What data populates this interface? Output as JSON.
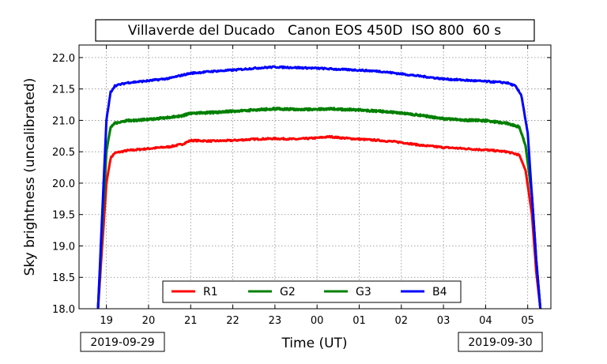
{
  "chart_data": {
    "type": "line",
    "title": "Villaverde del Ducado   Canon EOS 450D  ISO 800  60 s",
    "xlabel": "Time (UT)",
    "ylabel": "Sky brightness (uncalibrated)",
    "xlim": [
      18.35,
      29.55
    ],
    "ylim": [
      18.0,
      22.2
    ],
    "yticks": [
      18.0,
      18.5,
      19.0,
      19.5,
      20.0,
      20.5,
      21.0,
      21.5,
      22.0
    ],
    "ytick_labels": [
      "18.0",
      "18.5",
      "19.0",
      "19.5",
      "20.0",
      "20.5",
      "21.0",
      "21.5",
      "22.0"
    ],
    "xticks": [
      19,
      20,
      21,
      22,
      23,
      24,
      25,
      26,
      27,
      28,
      29
    ],
    "xtick_labels": [
      "19",
      "20",
      "21",
      "22",
      "23",
      "00",
      "01",
      "02",
      "03",
      "04",
      "05"
    ],
    "grid": true,
    "legend_position": "lower-center",
    "date_labels": {
      "start": "2019-09-29",
      "end": "2019-09-30"
    },
    "colors": {
      "R1": "#ff0000",
      "G2": "#008000",
      "G3": "#008000",
      "B4": "#0000ff"
    },
    "series": [
      {
        "name": "R1",
        "color": "#ff0000",
        "x": [
          18.8,
          18.9,
          19.0,
          19.1,
          19.2,
          19.5,
          20.0,
          20.5,
          20.8,
          21.0,
          21.5,
          22.0,
          22.5,
          23.0,
          23.5,
          24.0,
          24.3,
          24.6,
          25.0,
          25.5,
          26.0,
          26.5,
          27.0,
          27.5,
          28.0,
          28.5,
          28.8,
          28.95,
          29.1,
          29.2,
          29.3
        ],
        "y": [
          18.0,
          19.0,
          20.0,
          20.4,
          20.48,
          20.52,
          20.55,
          20.58,
          20.62,
          20.68,
          20.67,
          20.68,
          20.7,
          20.71,
          20.7,
          20.72,
          20.74,
          20.72,
          20.7,
          20.68,
          20.65,
          20.6,
          20.57,
          20.55,
          20.53,
          20.5,
          20.45,
          20.2,
          19.5,
          18.6,
          18.0
        ]
      },
      {
        "name": "G2",
        "color": "#008000",
        "x": [
          18.8,
          18.9,
          19.0,
          19.1,
          19.2,
          19.5,
          20.0,
          20.5,
          20.8,
          21.0,
          21.5,
          22.0,
          22.5,
          23.0,
          23.5,
          24.0,
          24.3,
          24.6,
          25.0,
          25.5,
          26.0,
          26.5,
          27.0,
          27.5,
          28.0,
          28.5,
          28.8,
          28.95,
          29.1,
          29.2,
          29.3
        ],
        "y": [
          18.0,
          19.3,
          20.5,
          20.9,
          20.96,
          21.0,
          21.02,
          21.05,
          21.08,
          21.12,
          21.13,
          21.15,
          21.17,
          21.19,
          21.18,
          21.18,
          21.19,
          21.18,
          21.17,
          21.15,
          21.12,
          21.08,
          21.03,
          21.01,
          21.0,
          20.96,
          20.9,
          20.6,
          19.8,
          18.8,
          18.0
        ]
      },
      {
        "name": "G3",
        "color": "#008000",
        "x": [
          18.8,
          18.9,
          19.0,
          19.1,
          19.2,
          19.5,
          20.0,
          20.5,
          20.8,
          21.0,
          21.5,
          22.0,
          22.5,
          23.0,
          23.5,
          24.0,
          24.3,
          24.6,
          25.0,
          25.5,
          26.0,
          26.5,
          27.0,
          27.5,
          28.0,
          28.5,
          28.8,
          28.95,
          29.1,
          29.2,
          29.3
        ],
        "y": [
          18.0,
          19.3,
          20.5,
          20.89,
          20.95,
          20.99,
          21.01,
          21.04,
          21.07,
          21.11,
          21.12,
          21.14,
          21.16,
          21.18,
          21.17,
          21.17,
          21.18,
          21.17,
          21.16,
          21.14,
          21.11,
          21.07,
          21.02,
          21.0,
          20.99,
          20.95,
          20.89,
          20.59,
          19.8,
          18.8,
          18.0
        ]
      },
      {
        "name": "B4",
        "color": "#0000ff",
        "x": [
          18.8,
          18.9,
          19.0,
          19.1,
          19.2,
          19.5,
          20.0,
          20.5,
          20.8,
          21.0,
          21.5,
          22.0,
          22.5,
          23.0,
          23.5,
          24.0,
          24.3,
          24.6,
          25.0,
          25.5,
          26.0,
          26.5,
          27.0,
          27.5,
          28.0,
          28.5,
          28.7,
          28.85,
          29.0,
          29.1,
          29.2,
          29.3
        ],
        "y": [
          18.0,
          19.5,
          21.0,
          21.45,
          21.55,
          21.6,
          21.63,
          21.67,
          21.72,
          21.75,
          21.78,
          21.8,
          21.83,
          21.85,
          21.84,
          21.83,
          21.82,
          21.81,
          21.8,
          21.78,
          21.74,
          21.7,
          21.66,
          21.64,
          21.62,
          21.6,
          21.55,
          21.4,
          20.8,
          19.8,
          18.8,
          18.0
        ]
      }
    ]
  }
}
